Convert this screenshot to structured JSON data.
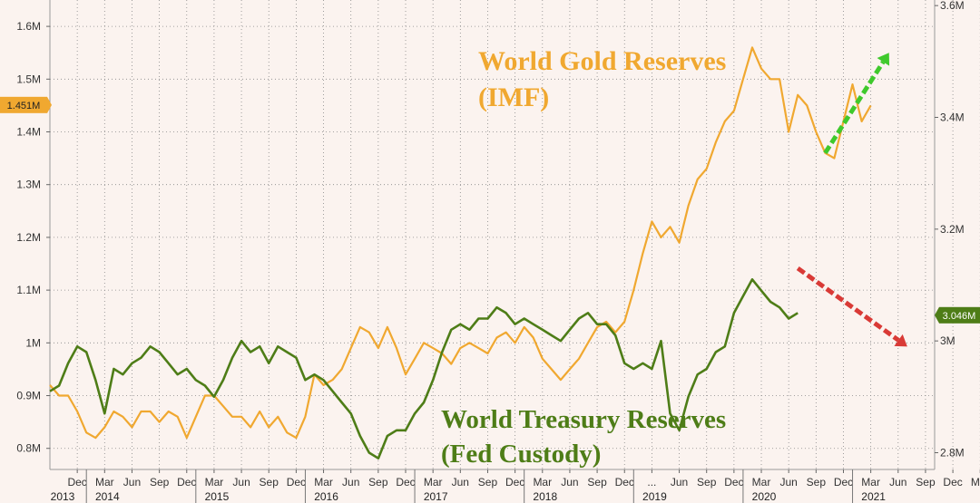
{
  "chart_data": {
    "type": "line",
    "x_axis": {
      "month_ticks": [
        "Dec",
        "Mar",
        "Jun",
        "Sep",
        "Dec",
        "Mar",
        "Jun",
        "Sep",
        "Dec",
        "Mar",
        "Jun",
        "Sep",
        "Dec",
        "Mar",
        "Jun",
        "Sep",
        "Dec",
        "Mar",
        "Jun",
        "Sep",
        "Dec",
        "...",
        "Jun",
        "Sep",
        "Dec",
        "Mar",
        "Jun",
        "Sep",
        "Dec",
        "Mar",
        "Jun",
        "Sep",
        "Dec",
        "Mar",
        "Jun",
        "Sep"
      ],
      "years": [
        "2013",
        "2014",
        "2015",
        "2016",
        "2017",
        "2018",
        "2019",
        "2020",
        "2021"
      ],
      "range": [
        "2013-09",
        "2021-10"
      ]
    },
    "y_left": {
      "ticks": [
        "1.6M",
        "1.5M",
        "1.4M",
        "1.3M",
        "1.2M",
        "1.1M",
        "1M",
        "0.9M",
        "0.8M"
      ],
      "tick_values": [
        1.6,
        1.5,
        1.4,
        1.3,
        1.2,
        1.1,
        1.0,
        0.9,
        0.8
      ],
      "range": [
        0.76,
        1.65
      ],
      "current_label": "1.451M",
      "current_value": 1.451
    },
    "y_right": {
      "ticks": [
        "3.6M",
        "3.4M",
        "3.2M",
        "3M",
        "2.8M"
      ],
      "tick_values": [
        3.6,
        3.4,
        3.2,
        3.0,
        2.8
      ],
      "range": [
        2.77,
        3.61
      ],
      "current_label": "3.046M",
      "current_value": 3.046
    },
    "grid": true,
    "series": [
      {
        "name": "World Gold Reserves (IMF)",
        "color": "#f0a830",
        "axis": "left",
        "points": [
          [
            "2013-09",
            0.92
          ],
          [
            "2013-10",
            0.9
          ],
          [
            "2013-11",
            0.9
          ],
          [
            "2013-12",
            0.87
          ],
          [
            "2014-01",
            0.83
          ],
          [
            "2014-02",
            0.82
          ],
          [
            "2014-03",
            0.84
          ],
          [
            "2014-04",
            0.87
          ],
          [
            "2014-05",
            0.86
          ],
          [
            "2014-06",
            0.84
          ],
          [
            "2014-07",
            0.87
          ],
          [
            "2014-08",
            0.87
          ],
          [
            "2014-09",
            0.85
          ],
          [
            "2014-10",
            0.87
          ],
          [
            "2014-11",
            0.86
          ],
          [
            "2014-12",
            0.82
          ],
          [
            "2015-01",
            0.86
          ],
          [
            "2015-02",
            0.9
          ],
          [
            "2015-03",
            0.9
          ],
          [
            "2015-04",
            0.88
          ],
          [
            "2015-05",
            0.86
          ],
          [
            "2015-06",
            0.86
          ],
          [
            "2015-07",
            0.84
          ],
          [
            "2015-08",
            0.87
          ],
          [
            "2015-09",
            0.84
          ],
          [
            "2015-10",
            0.86
          ],
          [
            "2015-11",
            0.83
          ],
          [
            "2015-12",
            0.82
          ],
          [
            "2016-01",
            0.86
          ],
          [
            "2016-02",
            0.94
          ],
          [
            "2016-03",
            0.92
          ],
          [
            "2016-04",
            0.93
          ],
          [
            "2016-05",
            0.95
          ],
          [
            "2016-06",
            0.99
          ],
          [
            "2016-07",
            1.03
          ],
          [
            "2016-08",
            1.02
          ],
          [
            "2016-09",
            0.99
          ],
          [
            "2016-10",
            1.03
          ],
          [
            "2016-11",
            0.99
          ],
          [
            "2016-12",
            0.94
          ],
          [
            "2017-01",
            0.97
          ],
          [
            "2017-02",
            1.0
          ],
          [
            "2017-03",
            0.99
          ],
          [
            "2017-04",
            0.98
          ],
          [
            "2017-05",
            0.96
          ],
          [
            "2017-06",
            0.99
          ],
          [
            "2017-07",
            1.0
          ],
          [
            "2017-08",
            0.99
          ],
          [
            "2017-09",
            0.98
          ],
          [
            "2017-10",
            1.01
          ],
          [
            "2017-11",
            1.02
          ],
          [
            "2017-12",
            1.0
          ],
          [
            "2018-01",
            1.03
          ],
          [
            "2018-02",
            1.01
          ],
          [
            "2018-03",
            0.97
          ],
          [
            "2018-04",
            0.95
          ],
          [
            "2018-05",
            0.93
          ],
          [
            "2018-06",
            0.95
          ],
          [
            "2018-07",
            0.97
          ],
          [
            "2018-08",
            1.0
          ],
          [
            "2018-09",
            1.03
          ],
          [
            "2018-10",
            1.04
          ],
          [
            "2018-11",
            1.02
          ],
          [
            "2018-12",
            1.04
          ],
          [
            "2019-01",
            1.1
          ],
          [
            "2019-02",
            1.17
          ],
          [
            "2019-03",
            1.23
          ],
          [
            "2019-04",
            1.2
          ],
          [
            "2019-05",
            1.22
          ],
          [
            "2019-06",
            1.19
          ],
          [
            "2019-07",
            1.26
          ],
          [
            "2019-08",
            1.31
          ],
          [
            "2019-09",
            1.33
          ],
          [
            "2019-10",
            1.38
          ],
          [
            "2019-11",
            1.42
          ],
          [
            "2019-12",
            1.44
          ],
          [
            "2020-01",
            1.5
          ],
          [
            "2020-02",
            1.56
          ],
          [
            "2020-03",
            1.52
          ],
          [
            "2020-04",
            1.5
          ],
          [
            "2020-05",
            1.5
          ],
          [
            "2020-06",
            1.4
          ],
          [
            "2020-07",
            1.47
          ],
          [
            "2020-08",
            1.45
          ],
          [
            "2020-09",
            1.4
          ],
          [
            "2020-10",
            1.36
          ],
          [
            "2020-11",
            1.35
          ],
          [
            "2020-12",
            1.42
          ],
          [
            "2021-01",
            1.49
          ],
          [
            "2021-02",
            1.42
          ],
          [
            "2021-03",
            1.45
          ]
        ]
      },
      {
        "name": "World Treasury Reserves (Fed Custody)",
        "color": "#4e7d17",
        "axis": "right",
        "points": [
          [
            "2013-09",
            2.91
          ],
          [
            "2013-10",
            2.92
          ],
          [
            "2013-11",
            2.96
          ],
          [
            "2013-12",
            2.99
          ],
          [
            "2014-01",
            2.98
          ],
          [
            "2014-02",
            2.93
          ],
          [
            "2014-03",
            2.87
          ],
          [
            "2014-04",
            2.95
          ],
          [
            "2014-05",
            2.94
          ],
          [
            "2014-06",
            2.96
          ],
          [
            "2014-07",
            2.97
          ],
          [
            "2014-08",
            2.99
          ],
          [
            "2014-09",
            2.98
          ],
          [
            "2014-10",
            2.96
          ],
          [
            "2014-11",
            2.94
          ],
          [
            "2014-12",
            2.95
          ],
          [
            "2015-01",
            2.93
          ],
          [
            "2015-02",
            2.92
          ],
          [
            "2015-03",
            2.9
          ],
          [
            "2015-04",
            2.93
          ],
          [
            "2015-05",
            2.97
          ],
          [
            "2015-06",
            3.0
          ],
          [
            "2015-07",
            2.98
          ],
          [
            "2015-08",
            2.99
          ],
          [
            "2015-09",
            2.96
          ],
          [
            "2015-10",
            2.99
          ],
          [
            "2015-11",
            2.98
          ],
          [
            "2015-12",
            2.97
          ],
          [
            "2016-01",
            2.93
          ],
          [
            "2016-02",
            2.94
          ],
          [
            "2016-03",
            2.93
          ],
          [
            "2016-04",
            2.91
          ],
          [
            "2016-05",
            2.89
          ],
          [
            "2016-06",
            2.87
          ],
          [
            "2016-07",
            2.83
          ],
          [
            "2016-08",
            2.8
          ],
          [
            "2016-09",
            2.79
          ],
          [
            "2016-10",
            2.83
          ],
          [
            "2016-11",
            2.84
          ],
          [
            "2016-12",
            2.84
          ],
          [
            "2017-01",
            2.87
          ],
          [
            "2017-02",
            2.89
          ],
          [
            "2017-03",
            2.93
          ],
          [
            "2017-04",
            2.98
          ],
          [
            "2017-05",
            3.02
          ],
          [
            "2017-06",
            3.03
          ],
          [
            "2017-07",
            3.02
          ],
          [
            "2017-08",
            3.04
          ],
          [
            "2017-09",
            3.04
          ],
          [
            "2017-10",
            3.06
          ],
          [
            "2017-11",
            3.05
          ],
          [
            "2017-12",
            3.03
          ],
          [
            "2018-01",
            3.04
          ],
          [
            "2018-02",
            3.03
          ],
          [
            "2018-03",
            3.02
          ],
          [
            "2018-04",
            3.01
          ],
          [
            "2018-05",
            3.0
          ],
          [
            "2018-06",
            3.02
          ],
          [
            "2018-07",
            3.04
          ],
          [
            "2018-08",
            3.05
          ],
          [
            "2018-09",
            3.03
          ],
          [
            "2018-10",
            3.03
          ],
          [
            "2018-11",
            3.01
          ],
          [
            "2018-12",
            2.96
          ],
          [
            "2019-01",
            2.95
          ],
          [
            "2019-02",
            2.96
          ],
          [
            "2019-03",
            2.95
          ],
          [
            "2019-04",
            3.0
          ],
          [
            "2019-05",
            2.87
          ],
          [
            "2019-06",
            2.84
          ],
          [
            "2019-07",
            2.9
          ],
          [
            "2019-08",
            2.94
          ],
          [
            "2019-09",
            2.95
          ],
          [
            "2019-10",
            2.98
          ],
          [
            "2019-11",
            2.99
          ],
          [
            "2019-12",
            3.05
          ],
          [
            "2020-01",
            3.08
          ],
          [
            "2020-02",
            3.11
          ],
          [
            "2020-03",
            3.09
          ],
          [
            "2020-04",
            3.07
          ],
          [
            "2020-05",
            3.06
          ],
          [
            "2020-06",
            3.04
          ],
          [
            "2020-07",
            3.05
          ]
        ]
      }
    ],
    "annotations": [
      {
        "text_lines": [
          "World Gold Reserves",
          "(IMF)"
        ],
        "color": "#f0a830"
      },
      {
        "text_lines": [
          "World Treasury Reserves",
          "(Fed Custody)"
        ],
        "color": "#4e7d17"
      }
    ],
    "arrows": [
      {
        "color": "#3fc92c",
        "direction": "up-right",
        "from": [
          "2020-10",
          1.36
        ],
        "to": [
          "2021-05",
          1.55
        ]
      },
      {
        "color": "#d93a36",
        "direction": "down-right",
        "from": [
          "2020-07",
          3.13
        ],
        "to": [
          "2021-07",
          2.99
        ]
      }
    ]
  }
}
